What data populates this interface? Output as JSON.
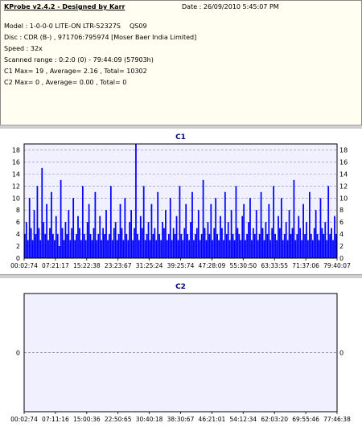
{
  "info": {
    "app_title": "KProbe v2.4.2 - Designed by Karr",
    "date": "Date : 26/09/2010 5:45:07 PM",
    "model": "Model : 1-0-0-0 LITE-ON LTR-52327S",
    "model_code": "QS09",
    "disc": "Disc : CDR (B-) , 971706:795974 [Moser Baer India Limited]",
    "speed": "Speed : 32x",
    "scanned_range": "Scanned range : 0:2:0 (0) - 79:44:09 (57903h)",
    "c1_stats": "C1 Max= 19 , Average= 2.16 , Total= 10302",
    "c2_stats": "C2 Max= 0 , Average= 0.00 , Total= 0"
  },
  "colors": {
    "bar": "#0000ff",
    "plot_bg": "#f0f0ff",
    "grid": "#8a8ab8",
    "title": "#000080",
    "zero_line": "#7a7a7a"
  },
  "chart_data": [
    {
      "type": "bar",
      "title": "C1",
      "xlabel": "",
      "ylabel": "",
      "ylim": [
        0,
        19
      ],
      "yticks": [
        0,
        2,
        4,
        6,
        8,
        10,
        12,
        14,
        16,
        18
      ],
      "xticks": [
        "00:02:74",
        "07:21:17",
        "15:22:38",
        "23:23:67",
        "31:25:24",
        "39:25:74",
        "47:28:09",
        "55:30:50",
        "63:33:55",
        "71:37:06",
        "79:40:07"
      ],
      "grid": true,
      "series": [
        {
          "values": [
            4,
            6,
            3,
            10,
            5,
            3,
            8,
            4,
            12,
            5,
            3,
            15,
            6,
            4,
            9,
            3,
            5,
            11,
            4,
            3,
            7,
            4,
            2,
            13,
            5,
            3,
            6,
            4,
            8,
            3,
            5,
            10,
            3,
            4,
            7,
            5,
            3,
            12,
            4,
            3,
            6,
            9,
            4,
            3,
            5,
            11,
            3,
            4,
            7,
            3,
            5,
            4,
            8,
            3,
            4,
            12,
            3,
            5,
            6,
            3,
            4,
            9,
            5,
            3,
            10,
            4,
            3,
            6,
            8,
            3,
            5,
            19,
            4,
            3,
            7,
            5,
            12,
            3,
            4,
            6,
            3,
            9,
            4,
            5,
            3,
            11,
            4,
            3,
            6,
            5,
            8,
            3,
            4,
            10,
            3,
            5,
            4,
            7,
            3,
            12,
            4,
            3,
            5,
            9,
            4,
            3,
            6,
            11,
            3,
            4,
            5,
            8,
            3,
            4,
            13,
            5,
            3,
            6,
            4,
            9,
            3,
            5,
            10,
            4,
            3,
            7,
            5,
            3,
            11,
            4,
            6,
            3,
            8,
            4,
            3,
            12,
            5,
            4,
            3,
            7,
            9,
            3,
            4,
            6,
            10,
            3,
            5,
            4,
            8,
            3,
            4,
            11,
            5,
            3,
            6,
            4,
            9,
            3,
            5,
            12,
            4,
            3,
            7,
            5,
            10,
            3,
            4,
            6,
            3,
            8,
            4,
            5,
            13,
            3,
            4,
            7,
            5,
            3,
            9,
            4,
            6,
            3,
            11,
            4,
            3,
            5,
            8,
            4,
            3,
            10,
            5,
            4,
            6,
            3,
            12,
            4,
            5,
            3,
            7,
            4
          ]
        }
      ]
    },
    {
      "type": "bar",
      "title": "C2",
      "xlabel": "",
      "ylabel": "",
      "ylim": [
        -1,
        1
      ],
      "yticks": [
        0
      ],
      "xticks": [
        "00:02:74",
        "07:11:16",
        "15:00:36",
        "22:50:65",
        "30:40:18",
        "38:30:67",
        "46:21:01",
        "54:12:34",
        "62:03:20",
        "69:55:46",
        "77:46:38"
      ],
      "grid": false,
      "series": [
        {
          "values": []
        }
      ]
    }
  ]
}
